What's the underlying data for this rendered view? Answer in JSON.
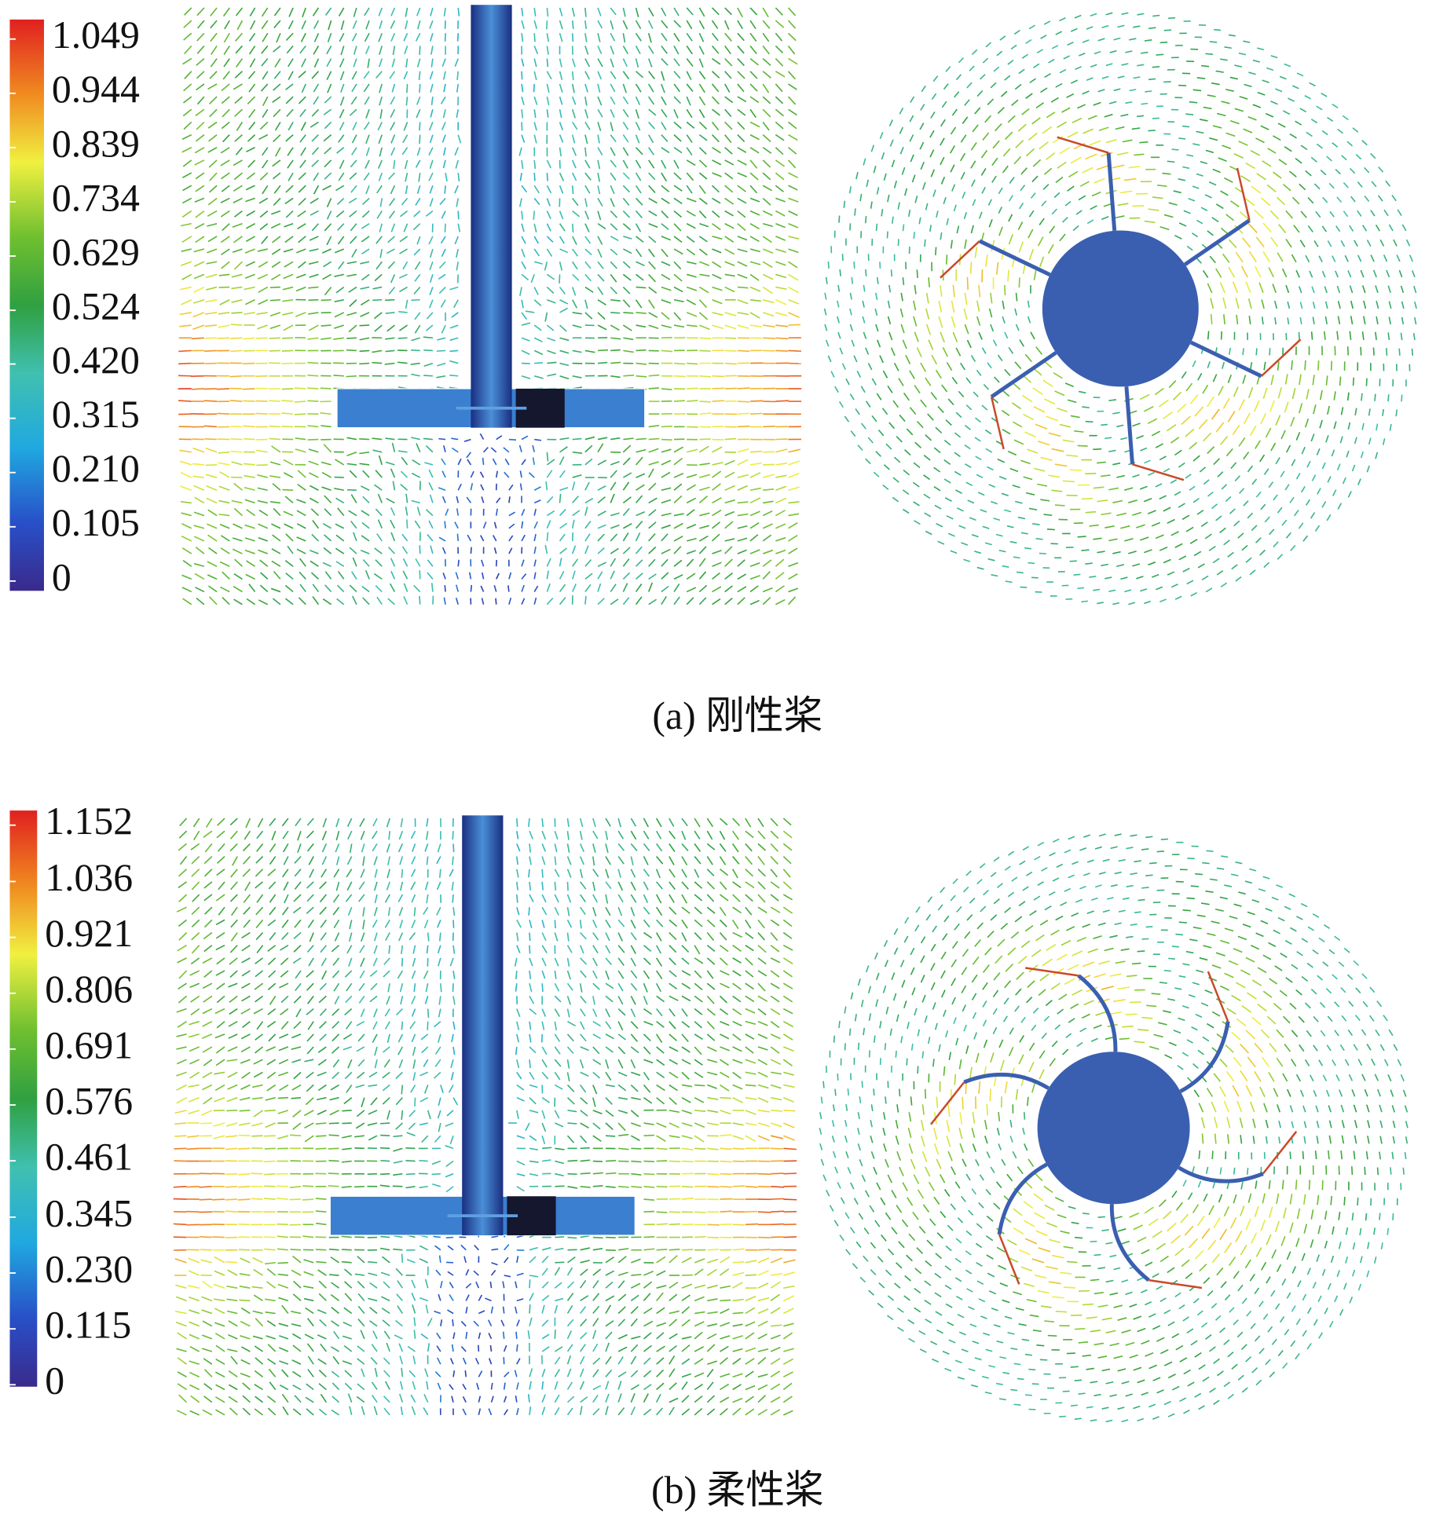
{
  "panels": [
    {
      "caption": "(a) 刚性桨",
      "colorbar": {
        "range": [
          0,
          1.049
        ],
        "ticks": [
          0,
          0.105,
          {
            "value": 0.21,
            "label": "0.210"
          },
          0.315,
          {
            "value": 0.42,
            "label": "0.420"
          },
          0.524,
          0.629,
          0.734,
          0.839,
          0.944,
          1.049
        ]
      }
    },
    {
      "caption": "(b) 柔性桨",
      "colorbar": {
        "range": [
          0,
          1.152
        ],
        "ticks": [
          0,
          0.115,
          {
            "value": 0.23,
            "label": "0.230"
          },
          0.345,
          0.461,
          0.576,
          0.691,
          0.806,
          0.921,
          1.036,
          1.152
        ]
      }
    }
  ]
}
